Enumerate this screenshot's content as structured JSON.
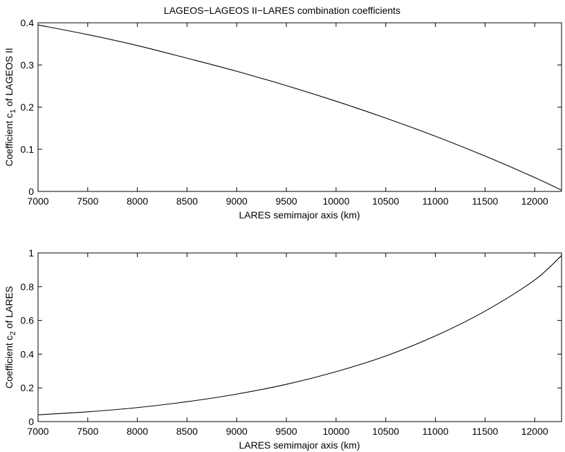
{
  "figure_title": "LAGEOS−LAGEOS II−LARES combination coefficients",
  "chart_data": [
    {
      "type": "line",
      "xlabel": "LARES semimajor axis (km)",
      "ylabel": {
        "prefix": "Coefficient c",
        "sub": "1",
        "suffix": " of LAGEOS II"
      },
      "xlim": [
        7000,
        12270
      ],
      "ylim": [
        0,
        0.4
      ],
      "xticks": [
        7000,
        7500,
        8000,
        8500,
        9000,
        9500,
        10000,
        10500,
        11000,
        11500,
        12000
      ],
      "yticks": [
        0,
        0.1,
        0.2,
        0.3,
        0.4
      ],
      "ytick_labels": [
        "0",
        "0.1",
        "0.2",
        "0.3",
        "0.4"
      ],
      "grid": false,
      "series": [
        {
          "x": [
            7000,
            7500,
            8000,
            8500,
            9000,
            9500,
            10000,
            10500,
            11000,
            11500,
            12000,
            12270
          ],
          "y": [
            0.395,
            0.372,
            0.346,
            0.316,
            0.285,
            0.251,
            0.214,
            0.174,
            0.131,
            0.084,
            0.033,
            0.003
          ]
        }
      ]
    },
    {
      "type": "line",
      "xlabel": "LARES semimajor axis (km)",
      "ylabel": {
        "prefix": "Coefficient c",
        "sub": "2",
        "suffix": " of LARES"
      },
      "xlim": [
        7000,
        12270
      ],
      "ylim": [
        0,
        1
      ],
      "xticks": [
        7000,
        7500,
        8000,
        8500,
        9000,
        9500,
        10000,
        10500,
        11000,
        11500,
        12000
      ],
      "yticks": [
        0,
        0.2,
        0.4,
        0.6,
        0.8,
        1
      ],
      "ytick_labels": [
        "0",
        "0.2",
        "0.4",
        "0.6",
        "0.8",
        "1"
      ],
      "grid": false,
      "series": [
        {
          "x": [
            7000,
            7500,
            8000,
            8500,
            9000,
            9500,
            10000,
            10500,
            11000,
            11500,
            12000,
            12270
          ],
          "y": [
            0.04,
            0.058,
            0.083,
            0.118,
            0.163,
            0.221,
            0.296,
            0.389,
            0.508,
            0.655,
            0.84,
            0.985
          ]
        }
      ]
    }
  ]
}
